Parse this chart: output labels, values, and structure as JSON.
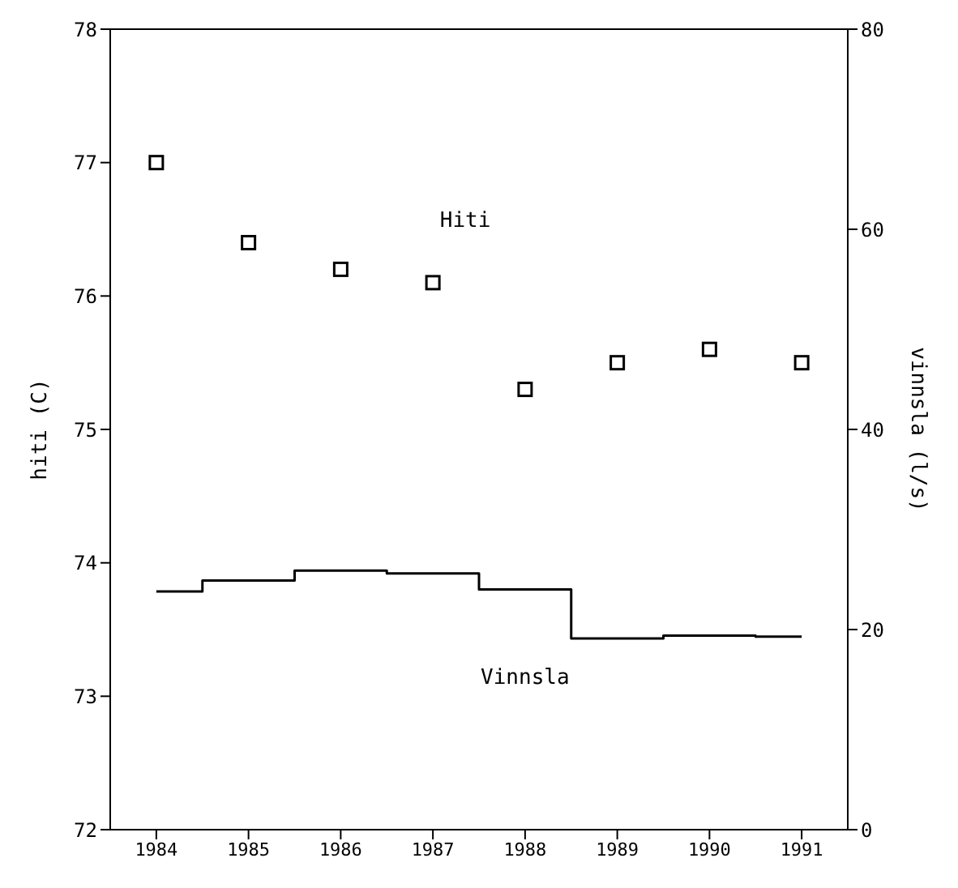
{
  "chart_data": {
    "type": "scatter",
    "ylabel": "hiti (C)",
    "y2label": "vinnsla (l/s)",
    "x": [
      1984,
      1985,
      1986,
      1987,
      1988,
      1989,
      1990,
      1991
    ],
    "xlim": [
      1983.5,
      1991.5
    ],
    "xticks": [
      1984,
      1985,
      1986,
      1987,
      1988,
      1989,
      1990,
      1991
    ],
    "ylim": [
      72,
      78
    ],
    "yticks": [
      72,
      73,
      74,
      75,
      76,
      77,
      78
    ],
    "y2lim": [
      0,
      80
    ],
    "y2ticks": [
      0,
      20,
      40,
      60,
      80
    ],
    "series": [
      {
        "name": "Hiti",
        "color": "#000000",
        "marker": "square",
        "values": [
          77.0,
          76.4,
          76.2,
          76.1,
          75.3,
          75.5,
          75.6,
          75.5
        ]
      },
      {
        "name": "Vinnsla",
        "type": "step",
        "axis": "y2",
        "color": "#000000",
        "values": [
          23.8,
          24.9,
          25.9,
          25.6,
          24.0,
          19.1,
          19.4,
          19.3
        ]
      }
    ]
  }
}
